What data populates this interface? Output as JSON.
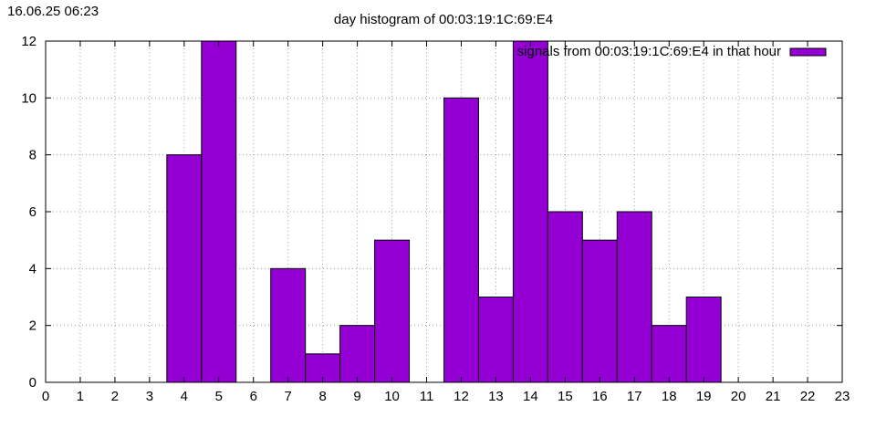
{
  "timestamp": "16.06.25 06:23",
  "chart_data": {
    "type": "bar",
    "title": "day histogram of 00:03:19:1C:69:E4",
    "xlabel": "",
    "ylabel": "",
    "xlim": [
      0,
      23
    ],
    "ylim": [
      0,
      12
    ],
    "x_ticks": [
      0,
      1,
      2,
      3,
      4,
      5,
      6,
      7,
      8,
      9,
      10,
      11,
      12,
      13,
      14,
      15,
      16,
      17,
      18,
      19,
      20,
      21,
      22,
      23
    ],
    "y_ticks": [
      0,
      2,
      4,
      6,
      8,
      10,
      12
    ],
    "grid": true,
    "legend_position": "top-right",
    "colors": {
      "bar": "#9400d3",
      "grid": "#a0a0a0",
      "axis": "#000000"
    },
    "series": [
      {
        "name": "signals from 00:03:19:1C:69:E4 in that hour",
        "points": [
          {
            "x": 4,
            "y": 8
          },
          {
            "x": 5,
            "y": 12
          },
          {
            "x": 7,
            "y": 4
          },
          {
            "x": 8,
            "y": 1
          },
          {
            "x": 9,
            "y": 2
          },
          {
            "x": 10,
            "y": 5
          },
          {
            "x": 12,
            "y": 10
          },
          {
            "x": 13,
            "y": 3
          },
          {
            "x": 14,
            "y": 12
          },
          {
            "x": 15,
            "y": 6
          },
          {
            "x": 16,
            "y": 5
          },
          {
            "x": 17,
            "y": 6
          },
          {
            "x": 18,
            "y": 2
          },
          {
            "x": 19,
            "y": 3
          }
        ]
      }
    ]
  }
}
